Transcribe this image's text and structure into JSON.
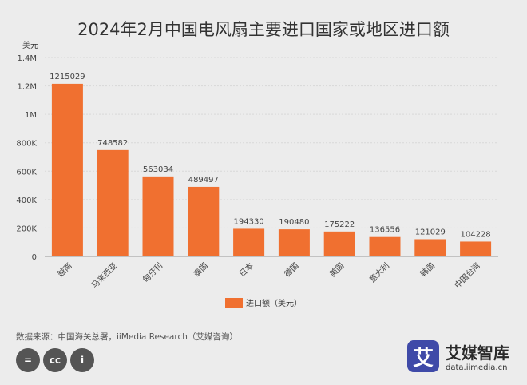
{
  "chart_data": {
    "type": "bar",
    "title": "2024年2月中国电风扇主要进口国家或地区进口额",
    "ylabel": "美元",
    "ylim": [
      0,
      1400000
    ],
    "yticks": [
      0,
      200000,
      400000,
      600000,
      800000,
      1000000,
      1200000,
      1400000
    ],
    "ytick_labels": [
      "0",
      "200K",
      "400K",
      "600K",
      "800K",
      "1M",
      "1.2M",
      "1.4M"
    ],
    "categories": [
      "越南",
      "马来西亚",
      "匈牙利",
      "泰国",
      "日本",
      "德国",
      "美国",
      "意大利",
      "韩国",
      "中国台湾"
    ],
    "series": [
      {
        "name": "进口额（美元）",
        "values": [
          1215029,
          748582,
          563034,
          489497,
          194330,
          190480,
          175222,
          136556,
          121029,
          104228
        ],
        "color": "#f07030"
      }
    ],
    "grid": true,
    "legend_position": "bottom"
  },
  "footer": {
    "source": "数据来源：中国海关总署，iiMedia Research（艾媒咨询）",
    "license_icons": [
      "equals-icon",
      "cc-icon",
      "person-icon"
    ],
    "license_glyphs": [
      "=",
      "cc",
      "i"
    ]
  },
  "brand": {
    "logo_char": "艾",
    "name": "艾媒智库",
    "url": "data.iimedia.cn",
    "color": "#3f4aa8"
  }
}
